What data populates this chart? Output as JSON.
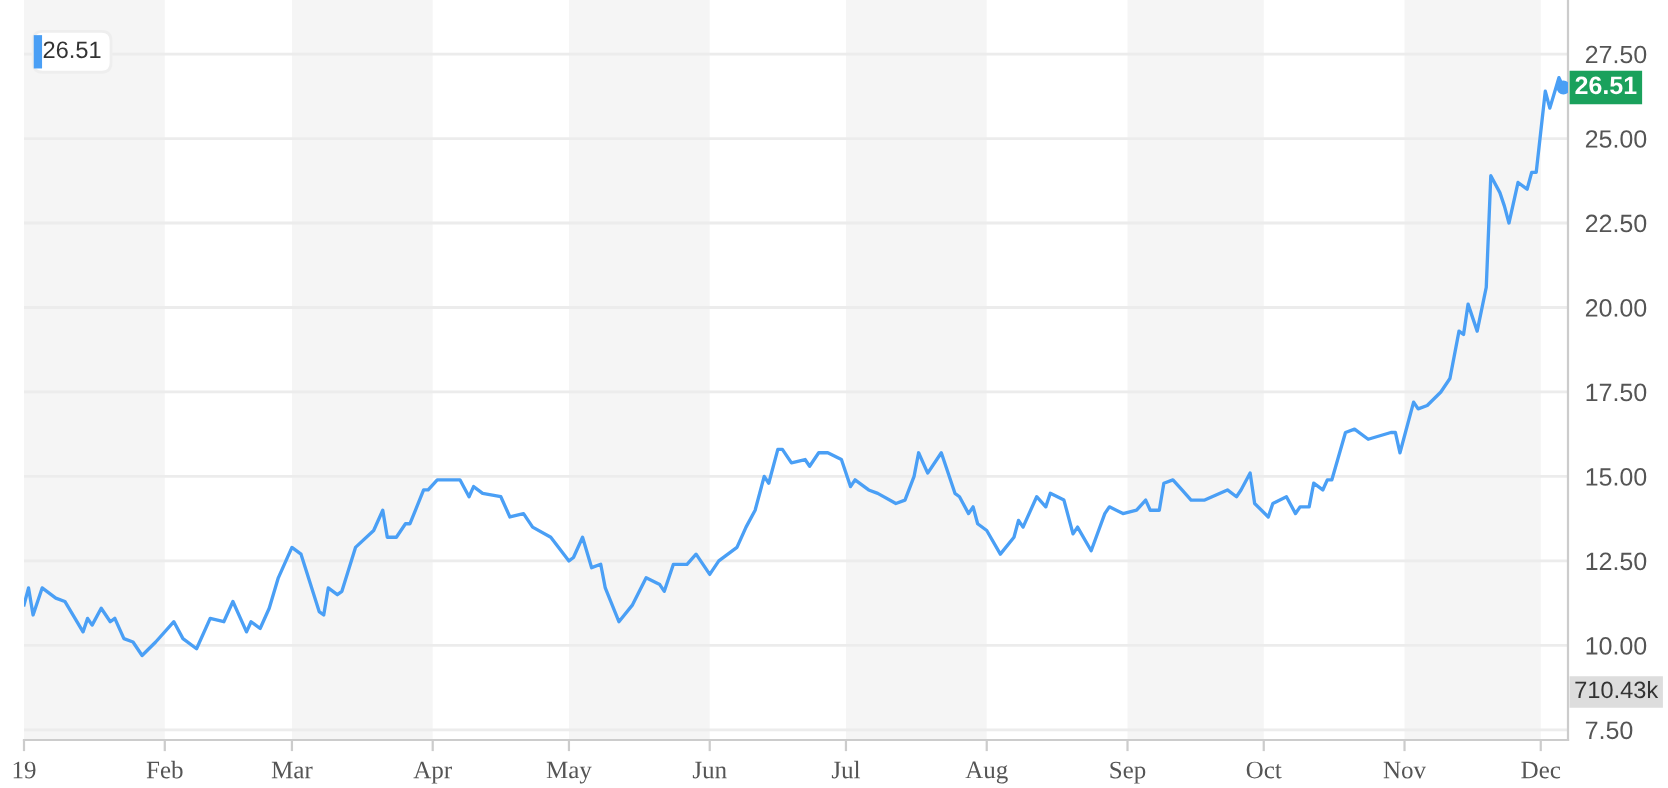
{
  "chart_data": {
    "type": "line",
    "x": [
      "2019-01-01",
      "2019-01-02",
      "2019-01-03",
      "2019-01-05",
      "2019-01-08",
      "2019-01-10",
      "2019-01-14",
      "2019-01-15",
      "2019-01-16",
      "2019-01-18",
      "2019-01-20",
      "2019-01-21",
      "2019-01-23",
      "2019-01-25",
      "2019-01-27",
      "2019-01-30",
      "2019-02-03",
      "2019-02-05",
      "2019-02-08",
      "2019-02-11",
      "2019-02-14",
      "2019-02-16",
      "2019-02-19",
      "2019-02-20",
      "2019-02-22",
      "2019-02-24",
      "2019-02-26",
      "2019-03-01",
      "2019-03-03",
      "2019-03-07",
      "2019-03-08",
      "2019-03-09",
      "2019-03-11",
      "2019-03-12",
      "2019-03-15",
      "2019-03-19",
      "2019-03-21",
      "2019-03-22",
      "2019-03-24",
      "2019-03-26",
      "2019-03-27",
      "2019-03-30",
      "2019-03-31",
      "2019-04-02",
      "2019-04-07",
      "2019-04-09",
      "2019-04-10",
      "2019-04-12",
      "2019-04-16",
      "2019-04-18",
      "2019-04-21",
      "2019-04-23",
      "2019-04-27",
      "2019-05-01",
      "2019-05-02",
      "2019-05-04",
      "2019-05-06",
      "2019-05-08",
      "2019-05-09",
      "2019-05-12",
      "2019-05-15",
      "2019-05-18",
      "2019-05-21",
      "2019-05-22",
      "2019-05-24",
      "2019-05-27",
      "2019-05-29",
      "2019-06-01",
      "2019-06-03",
      "2019-06-07",
      "2019-06-09",
      "2019-06-11",
      "2019-06-13",
      "2019-06-14",
      "2019-06-16",
      "2019-06-17",
      "2019-06-19",
      "2019-06-22",
      "2019-06-23",
      "2019-06-25",
      "2019-06-27",
      "2019-06-30",
      "2019-07-02",
      "2019-07-03",
      "2019-07-06",
      "2019-07-08",
      "2019-07-12",
      "2019-07-14",
      "2019-07-16",
      "2019-07-17",
      "2019-07-19",
      "2019-07-22",
      "2019-07-25",
      "2019-07-26",
      "2019-07-28",
      "2019-07-29",
      "2019-07-30",
      "2019-08-01",
      "2019-08-04",
      "2019-08-07",
      "2019-08-08",
      "2019-08-09",
      "2019-08-12",
      "2019-08-14",
      "2019-08-15",
      "2019-08-18",
      "2019-08-20",
      "2019-08-21",
      "2019-08-24",
      "2019-08-27",
      "2019-08-28",
      "2019-08-31",
      "2019-09-03",
      "2019-09-05",
      "2019-09-06",
      "2019-09-08",
      "2019-09-09",
      "2019-09-11",
      "2019-09-13",
      "2019-09-15",
      "2019-09-18",
      "2019-09-23",
      "2019-09-25",
      "2019-09-26",
      "2019-09-28",
      "2019-09-29",
      "2019-10-02",
      "2019-10-03",
      "2019-10-06",
      "2019-10-08",
      "2019-10-09",
      "2019-10-11",
      "2019-10-12",
      "2019-10-14",
      "2019-10-15",
      "2019-10-16",
      "2019-10-19",
      "2019-10-21",
      "2019-10-24",
      "2019-10-29",
      "2019-10-30",
      "2019-10-31",
      "2019-11-03",
      "2019-11-04",
      "2019-11-06",
      "2019-11-09",
      "2019-11-11",
      "2019-11-13",
      "2019-11-14",
      "2019-11-15",
      "2019-11-17",
      "2019-11-19",
      "2019-11-20",
      "2019-11-22",
      "2019-11-23",
      "2019-11-24",
      "2019-11-26",
      "2019-11-28",
      "2019-11-29",
      "2019-11-30",
      "2019-12-02",
      "2019-12-03",
      "2019-12-05",
      "2019-12-06"
    ],
    "series": [
      {
        "color": "#4a9ff5",
        "values": [
          11.2,
          11.7,
          10.9,
          11.7,
          11.4,
          11.3,
          10.4,
          10.8,
          10.6,
          11.1,
          10.7,
          10.8,
          10.2,
          10.1,
          9.7,
          10.1,
          10.7,
          10.2,
          9.9,
          10.8,
          10.7,
          11.3,
          10.4,
          10.7,
          10.5,
          11.1,
          12.0,
          12.9,
          12.7,
          11.0,
          10.9,
          11.7,
          11.5,
          11.6,
          12.9,
          13.4,
          14.0,
          13.2,
          13.2,
          13.6,
          13.6,
          14.6,
          14.6,
          14.9,
          14.9,
          14.4,
          14.7,
          14.5,
          14.4,
          13.8,
          13.9,
          13.5,
          13.2,
          12.5,
          12.6,
          13.2,
          12.3,
          12.4,
          11.7,
          10.7,
          11.2,
          12.0,
          11.8,
          11.6,
          12.4,
          12.4,
          12.7,
          12.1,
          12.5,
          12.9,
          13.5,
          14.0,
          15.0,
          14.8,
          15.8,
          15.8,
          15.4,
          15.5,
          15.3,
          15.7,
          15.7,
          15.5,
          14.7,
          14.9,
          14.6,
          14.5,
          14.2,
          14.3,
          15.0,
          15.7,
          15.1,
          15.7,
          14.5,
          14.4,
          13.9,
          14.1,
          13.6,
          13.4,
          12.7,
          13.2,
          13.7,
          13.5,
          14.4,
          14.1,
          14.5,
          14.3,
          13.3,
          13.5,
          12.8,
          13.9,
          14.1,
          13.9,
          14.0,
          14.3,
          14.0,
          14.0,
          14.8,
          14.9,
          14.6,
          14.3,
          14.3,
          14.6,
          14.4,
          14.6,
          15.1,
          14.2,
          13.8,
          14.2,
          14.4,
          13.9,
          14.1,
          14.1,
          14.8,
          14.6,
          14.9,
          14.9,
          16.3,
          16.4,
          16.1,
          16.3,
          16.3,
          15.7,
          17.2,
          17.0,
          17.1,
          17.5,
          17.9,
          19.3,
          19.2,
          20.1,
          19.3,
          20.6,
          23.9,
          23.4,
          23.0,
          22.5,
          23.7,
          23.5,
          24.0,
          24.0,
          26.4,
          25.9,
          26.8,
          26.51
        ]
      }
    ],
    "xlim": [
      "2019-01-01",
      "2019-12-07"
    ],
    "xticks": [
      {
        "value": "2019-01-01",
        "label": "19"
      },
      {
        "value": "2019-02-01",
        "label": "Feb"
      },
      {
        "value": "2019-03-01",
        "label": "Mar"
      },
      {
        "value": "2019-04-01",
        "label": "Apr"
      },
      {
        "value": "2019-05-01",
        "label": "May"
      },
      {
        "value": "2019-06-01",
        "label": "Jun"
      },
      {
        "value": "2019-07-01",
        "label": "Jul"
      },
      {
        "value": "2019-08-01",
        "label": "Aug"
      },
      {
        "value": "2019-09-01",
        "label": "Sep"
      },
      {
        "value": "2019-10-01",
        "label": "Oct"
      },
      {
        "value": "2019-11-01",
        "label": "Nov"
      },
      {
        "value": "2019-12-01",
        "label": "Dec"
      }
    ],
    "ylim": [
      7.2,
      29.1
    ],
    "yticks": [
      {
        "value": 7.5,
        "label": "7.50"
      },
      {
        "value": 10,
        "label": "10.00"
      },
      {
        "value": 12.5,
        "label": "12.50"
      },
      {
        "value": 15,
        "label": "15.00"
      },
      {
        "value": 17.5,
        "label": "17.50"
      },
      {
        "value": 20,
        "label": "20.00"
      },
      {
        "value": 22.5,
        "label": "22.50"
      },
      {
        "value": 25,
        "label": "25.00"
      },
      {
        "value": 27.5,
        "label": "27.50"
      }
    ],
    "grid": "y",
    "bands": [
      {
        "axis": "x",
        "from": "2019-01-01",
        "to": "2019-02-01",
        "color": "#f5f5f5"
      },
      {
        "axis": "x",
        "from": "2019-03-01",
        "to": "2019-04-01",
        "color": "#f5f5f5"
      },
      {
        "axis": "x",
        "from": "2019-05-01",
        "to": "2019-06-01",
        "color": "#f5f5f5"
      },
      {
        "axis": "x",
        "from": "2019-07-01",
        "to": "2019-08-01",
        "color": "#f5f5f5"
      },
      {
        "axis": "x",
        "from": "2019-09-01",
        "to": "2019-10-01",
        "color": "#f5f5f5"
      },
      {
        "axis": "x",
        "from": "2019-11-01",
        "to": "2019-12-01",
        "color": "#f5f5f5"
      }
    ],
    "annotations": [
      "26.51",
      {
        "text": "26.51",
        "x": "2019-12-06",
        "y": 26.51
      },
      "710.43k"
    ]
  }
}
